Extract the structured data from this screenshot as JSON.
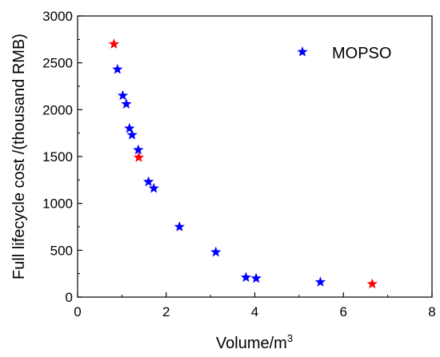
{
  "chart_data": {
    "type": "scatter",
    "title": "",
    "xlabel": "Volume/m",
    "xlabel_sup": "3",
    "ylabel": "Full lifecycle cost /(thousand RMB)",
    "xlim": [
      0,
      8
    ],
    "ylim": [
      0,
      3000
    ],
    "x_ticks": [
      "0",
      "2",
      "4",
      "6",
      "8"
    ],
    "y_ticks": [
      "0",
      "500",
      "1000",
      "1500",
      "2000",
      "2500",
      "3000"
    ],
    "grid": false,
    "legend_position": "top-right",
    "series": [
      {
        "name": "MOPSO",
        "color": "#0000FF",
        "marker": "star",
        "points": [
          {
            "x": 0.9,
            "y": 2430
          },
          {
            "x": 1.02,
            "y": 2150
          },
          {
            "x": 1.1,
            "y": 2060
          },
          {
            "x": 1.17,
            "y": 1800
          },
          {
            "x": 1.23,
            "y": 1730
          },
          {
            "x": 1.37,
            "y": 1570
          },
          {
            "x": 1.6,
            "y": 1230
          },
          {
            "x": 1.72,
            "y": 1160
          },
          {
            "x": 2.3,
            "y": 750
          },
          {
            "x": 3.12,
            "y": 480
          },
          {
            "x": 3.8,
            "y": 210
          },
          {
            "x": 4.03,
            "y": 200
          },
          {
            "x": 5.48,
            "y": 160
          }
        ]
      },
      {
        "name": "",
        "color": "#FF0000",
        "marker": "star",
        "points": [
          {
            "x": 0.82,
            "y": 2700
          },
          {
            "x": 1.38,
            "y": 1490
          },
          {
            "x": 6.65,
            "y": 140
          }
        ]
      }
    ]
  }
}
